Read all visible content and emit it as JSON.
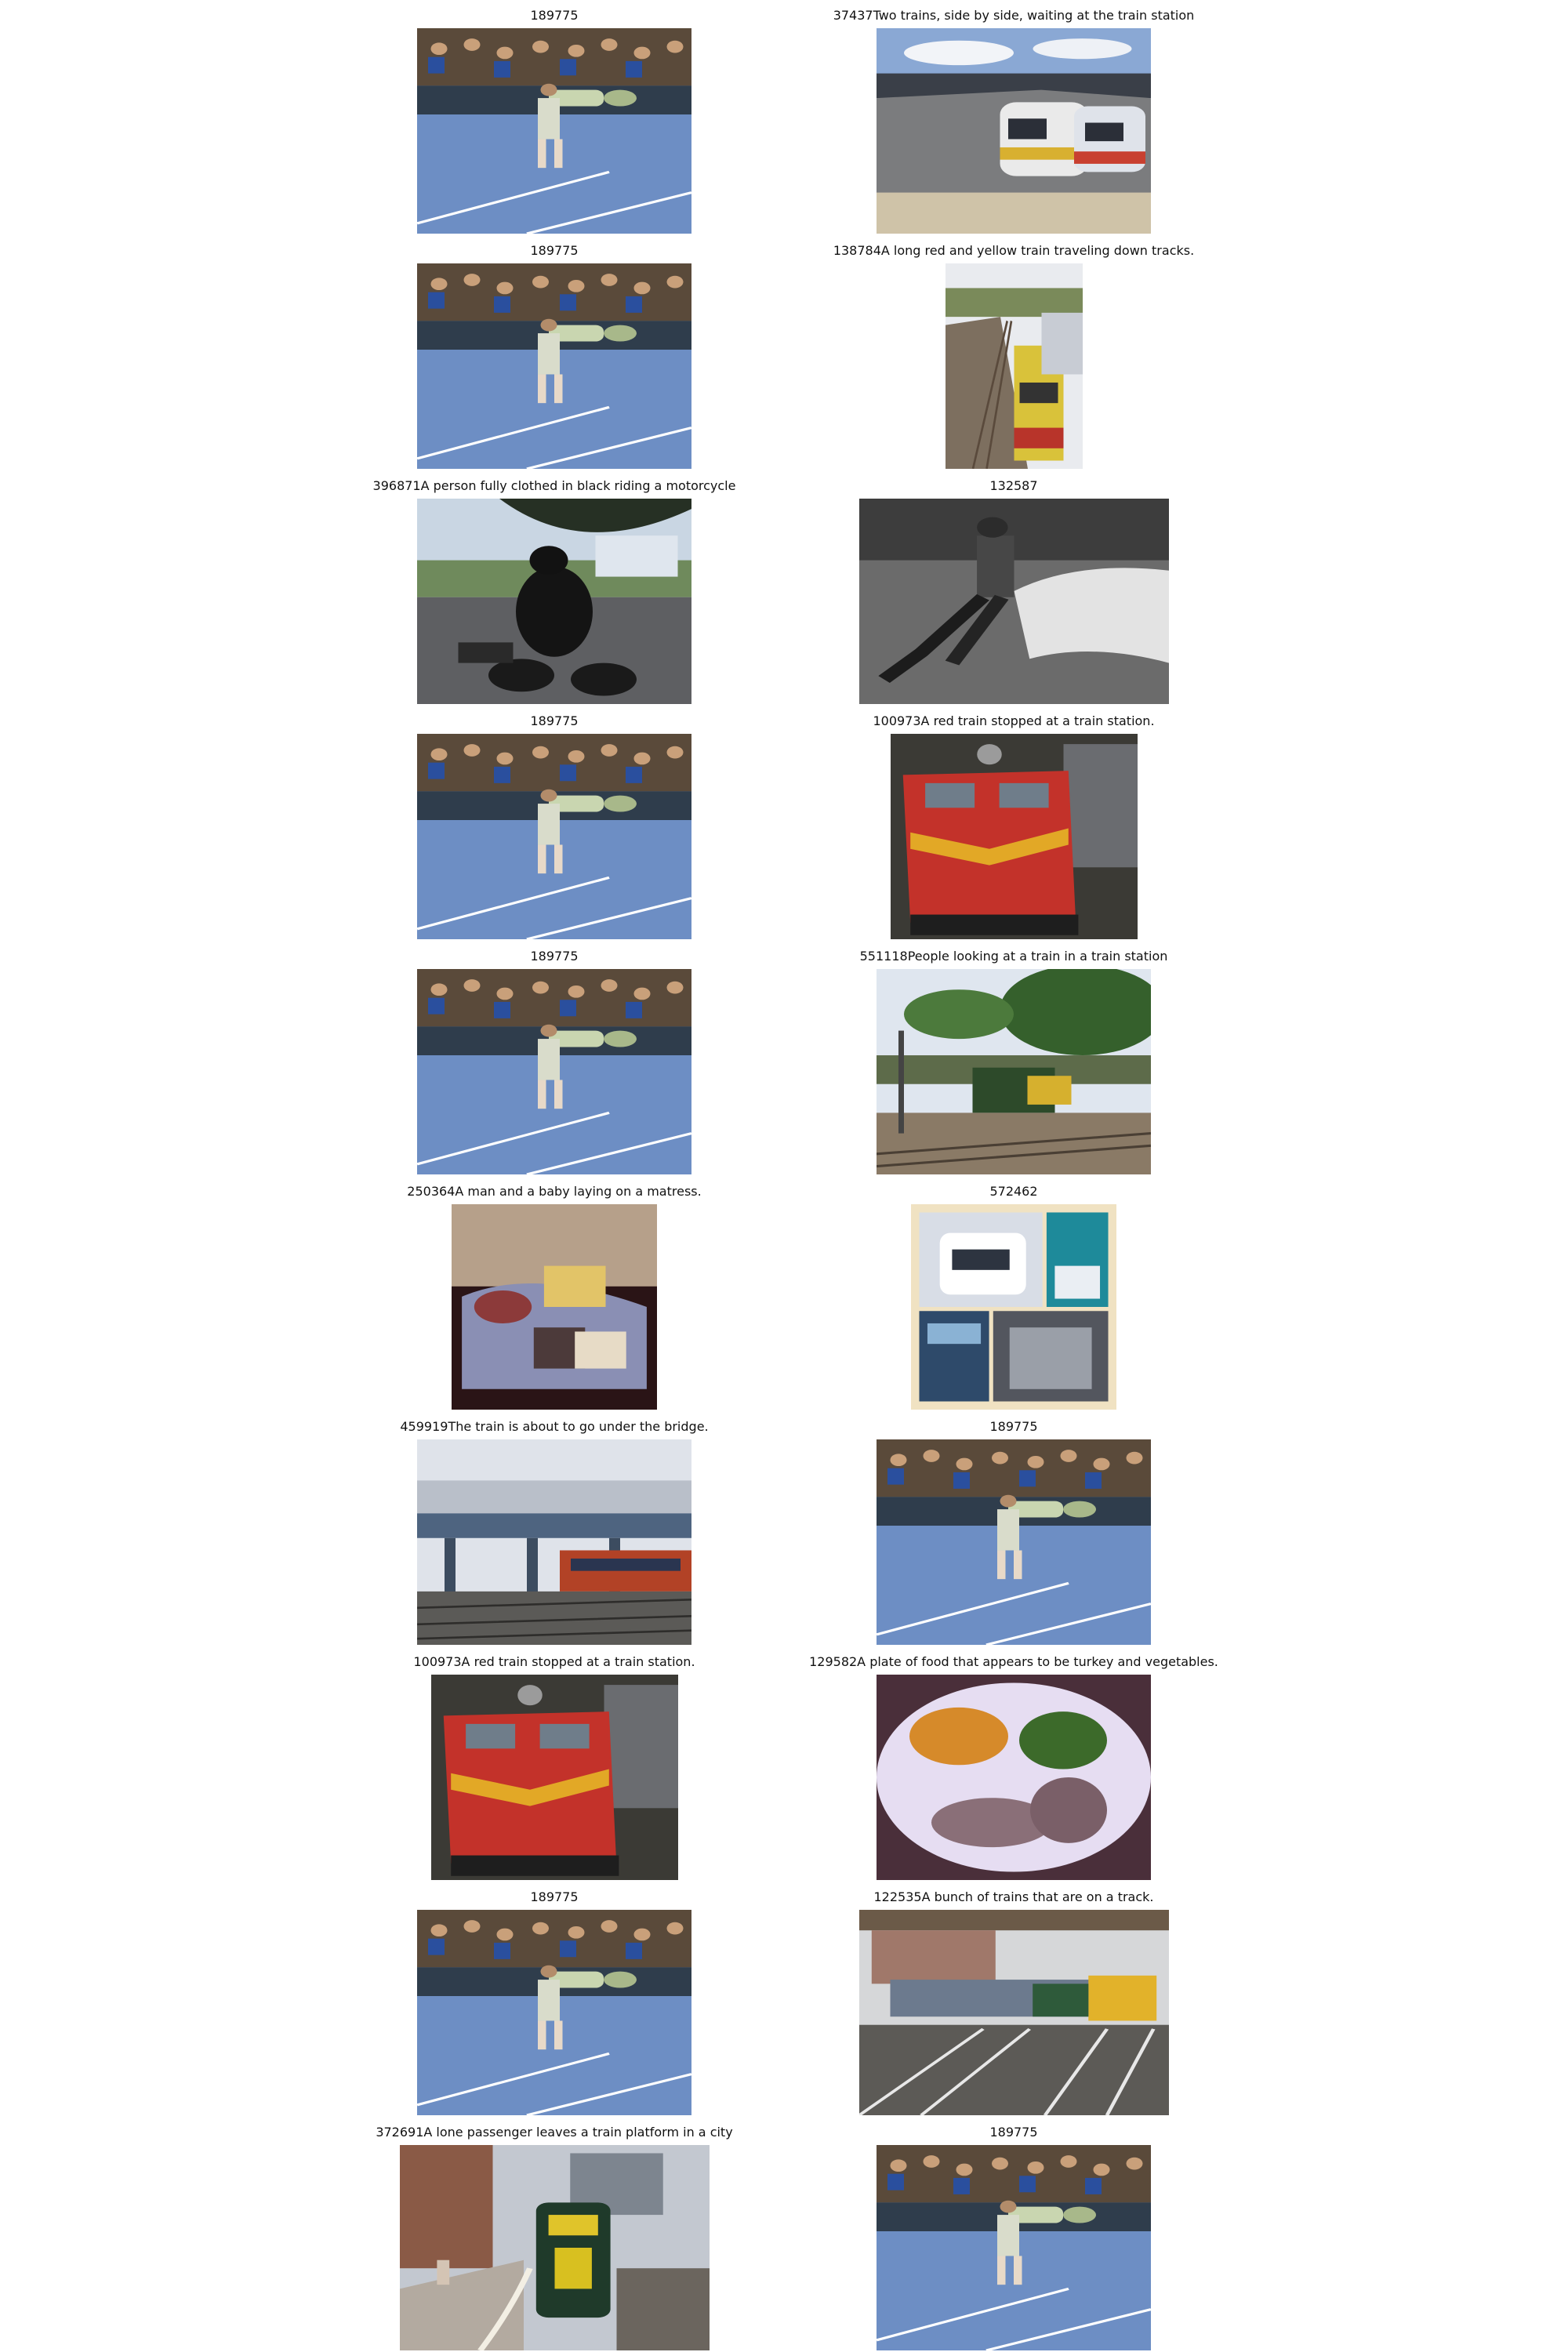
{
  "grid": [
    {
      "left": {
        "caption": "189775",
        "scene": "tennis"
      },
      "right": {
        "caption": "37437Two trains, side by side, waiting at the train station",
        "scene": "trains-side"
      }
    },
    {
      "left": {
        "caption": "189775",
        "scene": "tennis"
      },
      "right": {
        "caption": "138784A long red and yellow train traveling down tracks.",
        "scene": "train-narrow"
      }
    },
    {
      "left": {
        "caption": "396871A person fully clothed in black riding a motorcycle",
        "scene": "motorcycle"
      },
      "right": {
        "caption": "132587",
        "scene": "bw-sitting"
      }
    },
    {
      "left": {
        "caption": "189775",
        "scene": "tennis"
      },
      "right": {
        "caption": "100973A red train stopped at a train station.",
        "scene": "red-train"
      }
    },
    {
      "left": {
        "caption": "189775",
        "scene": "tennis"
      },
      "right": {
        "caption": "551118People looking at a train in a train station",
        "scene": "station-green"
      }
    },
    {
      "left": {
        "caption": "250364A man and a baby laying on a matress.",
        "scene": "bed"
      },
      "right": {
        "caption": "572462",
        "scene": "collage"
      }
    },
    {
      "left": {
        "caption": "459919The train is about to go under the bridge.",
        "scene": "bridge"
      },
      "right": {
        "caption": "189775",
        "scene": "tennis"
      }
    },
    {
      "left": {
        "caption": "100973A red train stopped at a train station.",
        "scene": "red-train"
      },
      "right": {
        "caption": "129582A plate of food that appears to be turkey and vegetables.",
        "scene": "food"
      }
    },
    {
      "left": {
        "caption": "189775",
        "scene": "tennis"
      },
      "right": {
        "caption": "122535A bunch of trains that are on a track.",
        "scene": "freight"
      }
    },
    {
      "left": {
        "caption": "372691A lone passenger leaves a train platform in a city",
        "scene": "platform-city"
      },
      "right": {
        "caption": "189775",
        "scene": "tennis"
      }
    }
  ]
}
